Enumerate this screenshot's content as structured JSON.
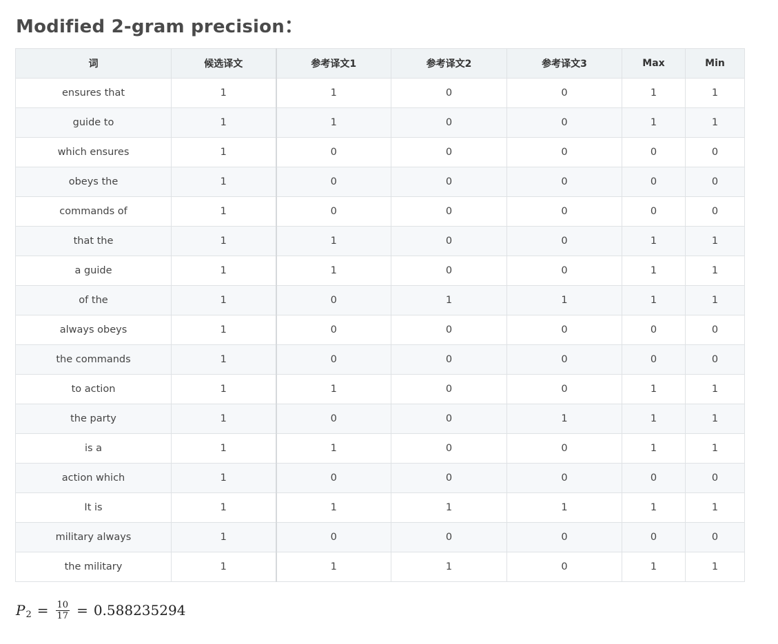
{
  "title": "Modified 2-gram precision：",
  "table": {
    "headers": [
      "词",
      "候选译文",
      "参考译文1",
      "参考译文2",
      "参考译文3",
      "Max",
      "Min"
    ],
    "rows": [
      [
        "ensures that",
        "1",
        "1",
        "0",
        "0",
        "1",
        "1"
      ],
      [
        "guide to",
        "1",
        "1",
        "0",
        "0",
        "1",
        "1"
      ],
      [
        "which ensures",
        "1",
        "0",
        "0",
        "0",
        "0",
        "0"
      ],
      [
        "obeys the",
        "1",
        "0",
        "0",
        "0",
        "0",
        "0"
      ],
      [
        "commands of",
        "1",
        "0",
        "0",
        "0",
        "0",
        "0"
      ],
      [
        "that the",
        "1",
        "1",
        "0",
        "0",
        "1",
        "1"
      ],
      [
        "a guide",
        "1",
        "1",
        "0",
        "0",
        "1",
        "1"
      ],
      [
        "of the",
        "1",
        "0",
        "1",
        "1",
        "1",
        "1"
      ],
      [
        "always obeys",
        "1",
        "0",
        "0",
        "0",
        "0",
        "0"
      ],
      [
        "the commands",
        "1",
        "0",
        "0",
        "0",
        "0",
        "0"
      ],
      [
        "to action",
        "1",
        "1",
        "0",
        "0",
        "1",
        "1"
      ],
      [
        "the party",
        "1",
        "0",
        "0",
        "1",
        "1",
        "1"
      ],
      [
        "is a",
        "1",
        "1",
        "0",
        "0",
        "1",
        "1"
      ],
      [
        "action which",
        "1",
        "0",
        "0",
        "0",
        "0",
        "0"
      ],
      [
        "It is",
        "1",
        "1",
        "1",
        "1",
        "1",
        "1"
      ],
      [
        "military always",
        "1",
        "0",
        "0",
        "0",
        "0",
        "0"
      ],
      [
        "the military",
        "1",
        "1",
        "1",
        "0",
        "1",
        "1"
      ]
    ]
  },
  "formula": {
    "variable": "P",
    "subscript": "2",
    "eq1": "=",
    "numerator": "10",
    "denominator": "17",
    "eq2": "=",
    "result": "0.588235294"
  },
  "colors": {
    "header_bg": "#eff3f5",
    "row_stripe": "#f6f8fa",
    "border": "#dfe2e5",
    "title": "#4a4a4a"
  }
}
